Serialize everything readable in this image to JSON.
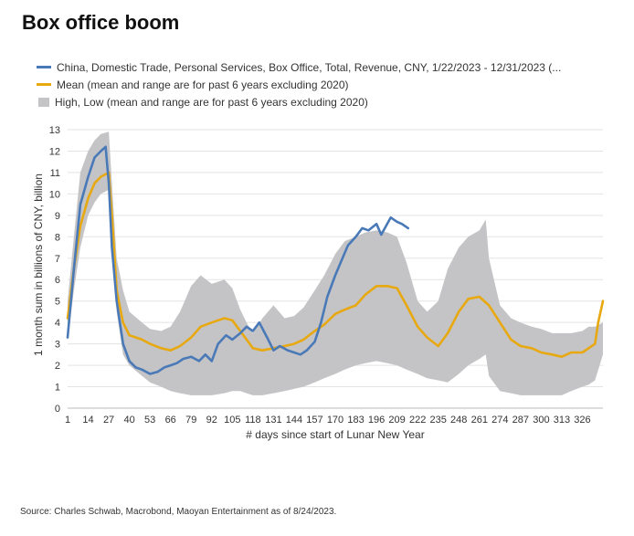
{
  "title": "Box office boom",
  "source": "Source: Charles Schwab, Macrobond, Maoyan Entertainment as of 8/24/2023.",
  "colors": {
    "china": "#4a79b8",
    "mean": "#e8a810",
    "range": "#c4c4c6",
    "grid": "#e3e3e3"
  },
  "chart_data": {
    "type": "line",
    "xlabel": "# days since start of Lunar New Year",
    "ylabel": "1 month sum in billions of CNY, billion",
    "ylim": [
      0,
      13
    ],
    "xlim": [
      1,
      339
    ],
    "yticks": [
      "0",
      "1",
      "2",
      "3",
      "4",
      "5",
      "6",
      "7",
      "8",
      "9",
      "10",
      "11",
      "12",
      "13"
    ],
    "xticks": [
      "1",
      "14",
      "27",
      "40",
      "53",
      "66",
      "79",
      "92",
      "105",
      "118",
      "131",
      "144",
      "157",
      "170",
      "183",
      "196",
      "209",
      "222",
      "235",
      "248",
      "261",
      "274",
      "287",
      "300",
      "313",
      "326"
    ],
    "grid": true,
    "legend": "top",
    "series": [
      {
        "name": "China, Domestic Trade, Personal Services, Box Office, Total, Revenue, CNY, 1/22/2023 - 12/31/2023 (...",
        "x": [
          1,
          5,
          9,
          14,
          18,
          22,
          25,
          27,
          29,
          32,
          36,
          40,
          44,
          48,
          53,
          58,
          62,
          66,
          70,
          74,
          79,
          84,
          88,
          92,
          96,
          101,
          105,
          110,
          114,
          118,
          122,
          127,
          131,
          135,
          140,
          144,
          148,
          152,
          157,
          161,
          165,
          170,
          174,
          178,
          183,
          187,
          191,
          196,
          199,
          202,
          205,
          209,
          212,
          216
        ],
        "values": [
          3.3,
          6.5,
          9.5,
          10.8,
          11.7,
          12.0,
          12.2,
          10.5,
          7.5,
          5.0,
          3.0,
          2.2,
          1.9,
          1.8,
          1.6,
          1.7,
          1.9,
          2.0,
          2.1,
          2.3,
          2.4,
          2.2,
          2.5,
          2.2,
          3.0,
          3.4,
          3.2,
          3.5,
          3.8,
          3.6,
          4.0,
          3.3,
          2.7,
          2.9,
          2.7,
          2.6,
          2.5,
          2.7,
          3.1,
          4.0,
          5.2,
          6.2,
          6.9,
          7.6,
          8.0,
          8.4,
          8.3,
          8.6,
          8.1,
          8.5,
          8.9,
          8.7,
          8.6,
          8.4
        ]
      },
      {
        "name": "Mean (mean and range are for past 6 years excluding 2020)",
        "x": [
          1,
          5,
          9,
          14,
          18,
          22,
          27,
          29,
          32,
          36,
          40,
          48,
          53,
          60,
          66,
          72,
          79,
          85,
          92,
          100,
          105,
          110,
          114,
          118,
          124,
          131,
          138,
          144,
          150,
          157,
          163,
          170,
          176,
          183,
          189,
          196,
          203,
          209,
          215,
          222,
          228,
          235,
          241,
          248,
          254,
          261,
          267,
          274,
          281,
          287,
          294,
          300,
          307,
          313,
          319,
          326,
          330,
          334,
          336,
          339
        ],
        "values": [
          4.2,
          6.5,
          8.5,
          9.8,
          10.5,
          10.8,
          11.0,
          9.0,
          5.5,
          4.0,
          3.4,
          3.2,
          3.0,
          2.8,
          2.7,
          2.9,
          3.3,
          3.8,
          4.0,
          4.2,
          4.1,
          3.6,
          3.2,
          2.8,
          2.7,
          2.8,
          2.9,
          3.0,
          3.2,
          3.6,
          3.9,
          4.4,
          4.6,
          4.8,
          5.3,
          5.7,
          5.7,
          5.6,
          4.8,
          3.8,
          3.3,
          2.9,
          3.5,
          4.5,
          5.1,
          5.2,
          4.8,
          4.0,
          3.2,
          2.9,
          2.8,
          2.6,
          2.5,
          2.4,
          2.6,
          2.6,
          2.8,
          3.0,
          4.0,
          5.0
        ]
      },
      {
        "name": "High, Low (mean and range are for past 6 years excluding 2020)",
        "x": [
          1,
          5,
          9,
          14,
          18,
          22,
          27,
          29,
          32,
          36,
          40,
          48,
          53,
          60,
          66,
          72,
          79,
          85,
          92,
          100,
          105,
          110,
          114,
          118,
          124,
          131,
          138,
          144,
          150,
          157,
          163,
          170,
          176,
          183,
          189,
          196,
          203,
          209,
          215,
          222,
          228,
          235,
          241,
          248,
          254,
          261,
          265,
          267,
          274,
          281,
          287,
          294,
          300,
          307,
          313,
          319,
          326,
          330,
          334,
          339
        ],
        "high": [
          5.0,
          8.0,
          11.0,
          12.0,
          12.5,
          12.8,
          12.9,
          10.5,
          7.0,
          5.5,
          4.5,
          4.0,
          3.7,
          3.6,
          3.8,
          4.5,
          5.7,
          6.2,
          5.8,
          6.0,
          5.6,
          4.6,
          4.0,
          3.5,
          4.2,
          4.8,
          4.2,
          4.3,
          4.7,
          5.5,
          6.2,
          7.2,
          7.8,
          8.0,
          8.2,
          8.3,
          8.2,
          8.0,
          6.8,
          5.0,
          4.5,
          5.0,
          6.5,
          7.5,
          8.0,
          8.3,
          8.8,
          7.0,
          4.8,
          4.2,
          4.0,
          3.8,
          3.7,
          3.5,
          3.5,
          3.5,
          3.6,
          3.8,
          3.8,
          4.0
        ],
        "low": [
          3.2,
          5.5,
          7.5,
          9.0,
          9.6,
          10.0,
          10.2,
          8.0,
          4.5,
          2.5,
          2.0,
          1.5,
          1.2,
          1.0,
          0.8,
          0.7,
          0.6,
          0.6,
          0.6,
          0.7,
          0.8,
          0.8,
          0.7,
          0.6,
          0.6,
          0.7,
          0.8,
          0.9,
          1.0,
          1.2,
          1.4,
          1.6,
          1.8,
          2.0,
          2.1,
          2.2,
          2.1,
          2.0,
          1.8,
          1.6,
          1.4,
          1.3,
          1.2,
          1.6,
          2.0,
          2.3,
          2.5,
          1.5,
          0.8,
          0.7,
          0.6,
          0.6,
          0.6,
          0.6,
          0.6,
          0.8,
          1.0,
          1.1,
          1.3,
          2.5
        ]
      }
    ]
  }
}
